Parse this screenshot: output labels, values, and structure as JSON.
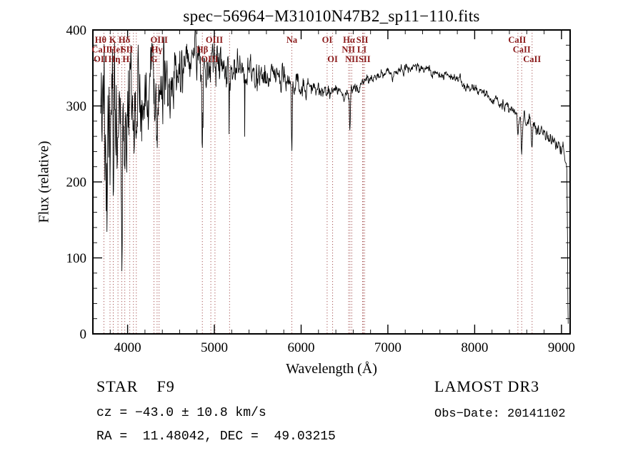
{
  "title": "spec−56964−M31010N47B2_sp11−110.fits",
  "footer": {
    "class_label": "STAR    F9",
    "survey": "LAMOST DR3",
    "cz": "cz = −43.0 ± 10.8 km/s",
    "obs_date": "Obs−Date: 20141102",
    "coords": "RA =  11.48042, DEC =  49.03215"
  },
  "chart_data": {
    "type": "line",
    "title": "spec−56964−M31010N47B2_sp11−110.fits",
    "xlabel": "Wavelength (Å)",
    "ylabel": "Flux (relative)",
    "xlim": [
      3600,
      9100
    ],
    "ylim": [
      0,
      400
    ],
    "xticks": [
      4000,
      5000,
      6000,
      7000,
      8000,
      9000
    ],
    "yticks": [
      0,
      100,
      200,
      300,
      400
    ],
    "x_minor_step": 200,
    "y_minor_step": 20,
    "grid": false,
    "line_color": "#000000",
    "marker_line_color": "#a04848",
    "label_color": "#8b1a1a",
    "spectrum": {
      "wave_start": 3690,
      "wave_end": 9078,
      "step": 4,
      "seed": 20141102,
      "continuum": [
        [
          3690,
          230
        ],
        [
          3740,
          245
        ],
        [
          3790,
          258
        ],
        [
          3840,
          265
        ],
        [
          3890,
          270
        ],
        [
          3940,
          276
        ],
        [
          4000,
          286
        ],
        [
          4100,
          299
        ],
        [
          4200,
          310
        ],
        [
          4300,
          321
        ],
        [
          4400,
          331
        ],
        [
          4500,
          341
        ],
        [
          4600,
          349
        ],
        [
          4700,
          355
        ],
        [
          4800,
          359
        ],
        [
          4900,
          361
        ],
        [
          5000,
          361
        ],
        [
          5100,
          357
        ],
        [
          5200,
          352
        ],
        [
          5300,
          347
        ],
        [
          5400,
          343
        ],
        [
          5500,
          340
        ],
        [
          5600,
          337
        ],
        [
          5700,
          335
        ],
        [
          5800,
          333
        ],
        [
          5900,
          330
        ],
        [
          6000,
          327
        ],
        [
          6100,
          323
        ],
        [
          6200,
          320
        ],
        [
          6300,
          318
        ],
        [
          6400,
          317
        ],
        [
          6500,
          319
        ],
        [
          6600,
          323
        ],
        [
          6700,
          329
        ],
        [
          6800,
          335
        ],
        [
          6900,
          340
        ],
        [
          7000,
          344
        ],
        [
          7100,
          347
        ],
        [
          7200,
          349
        ],
        [
          7300,
          350
        ],
        [
          7400,
          349
        ],
        [
          7500,
          347
        ],
        [
          7600,
          343
        ],
        [
          7700,
          338
        ],
        [
          7800,
          333
        ],
        [
          7900,
          328
        ],
        [
          8000,
          322
        ],
        [
          8100,
          316
        ],
        [
          8200,
          310
        ],
        [
          8300,
          304
        ],
        [
          8400,
          297
        ],
        [
          8500,
          290
        ],
        [
          8600,
          282
        ],
        [
          8700,
          273
        ],
        [
          8800,
          263
        ],
        [
          8900,
          253
        ],
        [
          8950,
          249
        ],
        [
          9000,
          245
        ],
        [
          9030,
          242
        ],
        [
          9055,
          238
        ],
        [
          9062,
          225
        ],
        [
          9068,
          150
        ],
        [
          9073,
          60
        ],
        [
          9078,
          8
        ]
      ],
      "noise_sigma": [
        [
          3690,
          78
        ],
        [
          3750,
          68
        ],
        [
          3800,
          58
        ],
        [
          3850,
          52
        ],
        [
          3900,
          47
        ],
        [
          4000,
          40
        ],
        [
          4100,
          35
        ],
        [
          4200,
          31
        ],
        [
          4300,
          28
        ],
        [
          4400,
          25
        ],
        [
          4600,
          21
        ],
        [
          4800,
          18
        ],
        [
          5000,
          15
        ],
        [
          5300,
          12
        ],
        [
          5600,
          9.5
        ],
        [
          5900,
          8
        ],
        [
          6200,
          6.5
        ],
        [
          6500,
          5.2
        ],
        [
          6800,
          4.2
        ],
        [
          7200,
          3.6
        ],
        [
          7600,
          3.4
        ],
        [
          8000,
          3.8
        ],
        [
          8400,
          4.2
        ],
        [
          8800,
          5.2
        ],
        [
          9000,
          6
        ],
        [
          9078,
          6.5
        ]
      ],
      "absorption_lines": [
        [
          3798,
          55,
          5
        ],
        [
          3835,
          50,
          5
        ],
        [
          3933,
          115,
          5
        ],
        [
          3968,
          105,
          5
        ],
        [
          4101,
          70,
          5
        ],
        [
          4304,
          32,
          8
        ],
        [
          4340,
          72,
          5
        ],
        [
          4861,
          95,
          5
        ],
        [
          5175,
          30,
          10
        ],
        [
          5893,
          92,
          5
        ],
        [
          6563,
          55,
          5
        ],
        [
          8498,
          28,
          6
        ],
        [
          8542,
          45,
          6
        ],
        [
          8662,
          38,
          6
        ]
      ],
      "spike_zone": {
        "from": 4150,
        "to": 5650,
        "prob": 0.015,
        "min_depth": 40,
        "max_depth": 80
      }
    },
    "marker_lines": [
      3727,
      3798,
      3835,
      3889,
      3933,
      3968,
      4026,
      4068,
      4101,
      4304,
      4340,
      4363,
      4861,
      4959,
      5007,
      5175,
      5893,
      6300,
      6363,
      6548,
      6563,
      6583,
      6707,
      6716,
      6731,
      8498,
      8542,
      8662
    ],
    "line_labels": {
      "rows": [
        [
          {
            "text": "Hθ",
            "x": 3690
          },
          {
            "text": "K",
            "x": 3830
          },
          {
            "text": "Hδ",
            "x": 3962
          },
          {
            "text": "OIII",
            "x": 4363
          },
          {
            "text": "OIII",
            "x": 5000
          },
          {
            "text": "Na",
            "x": 5893
          },
          {
            "text": "OI",
            "x": 6300
          },
          {
            "text": "Hα",
            "x": 6552
          },
          {
            "text": "SII",
            "x": 6705
          },
          {
            "text": "CaII",
            "x": 8490
          }
        ],
        [
          {
            "text": "CaII",
            "x": 3690
          },
          {
            "text": "HeI",
            "x": 3870
          },
          {
            "text": "SII",
            "x": 3995
          },
          {
            "text": "Hγ",
            "x": 4338
          },
          {
            "text": "Hβ",
            "x": 4861
          },
          {
            "text": "NII",
            "x": 6545
          },
          {
            "text": "LI",
            "x": 6700
          },
          {
            "text": "CaII",
            "x": 8542
          }
        ],
        [
          {
            "text": "OII",
            "x": 3690
          },
          {
            "text": "Hη",
            "x": 3848
          },
          {
            "text": "H",
            "x": 3980
          },
          {
            "text": "G",
            "x": 4304
          },
          {
            "text": "OIII",
            "x": 4945
          },
          {
            "text": "OI",
            "x": 6363
          },
          {
            "text": "NII",
            "x": 6585
          },
          {
            "text": "SII",
            "x": 6731
          },
          {
            "text": "CaII",
            "x": 8662
          }
        ]
      ]
    }
  }
}
